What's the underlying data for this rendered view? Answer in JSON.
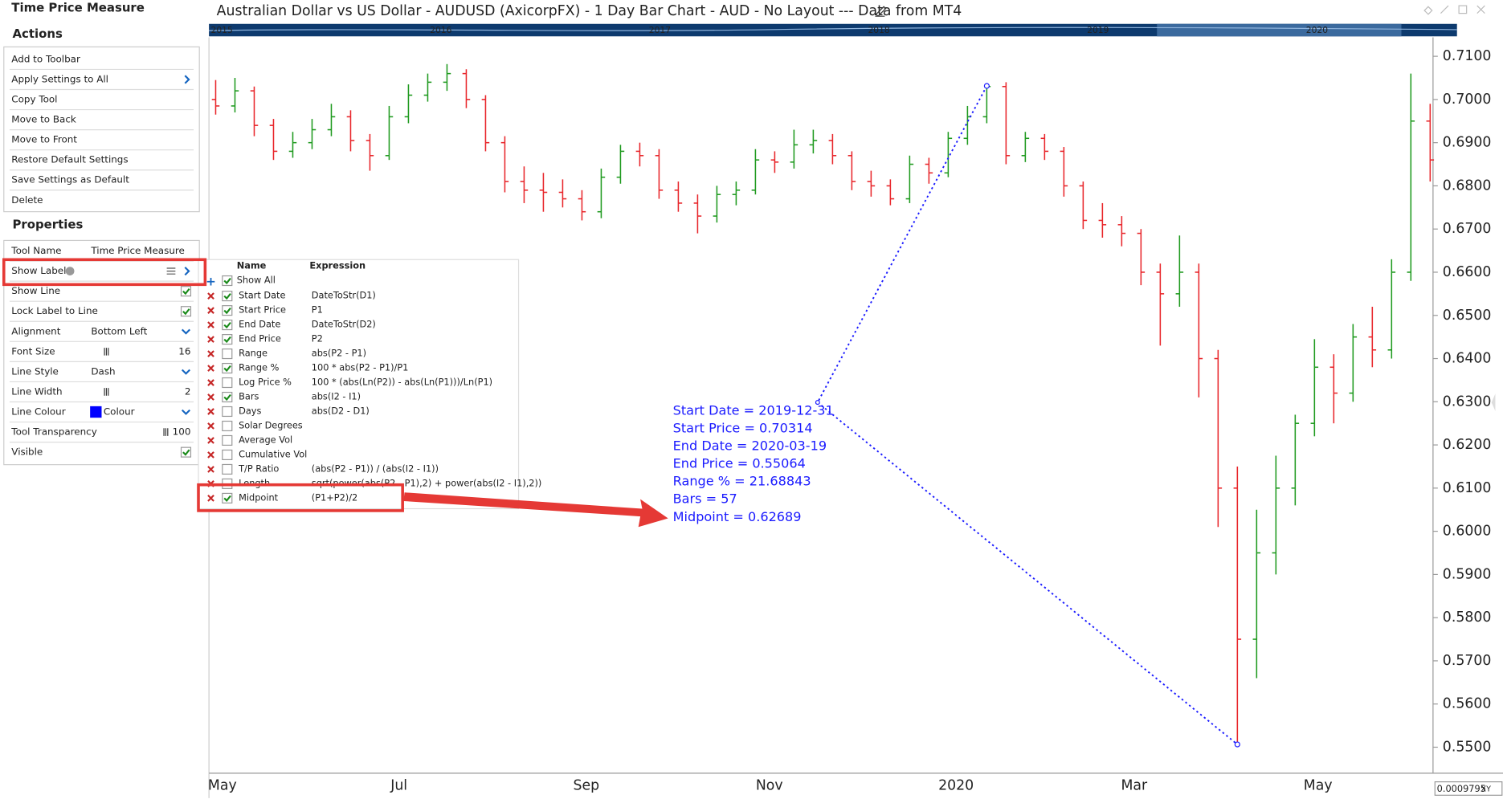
{
  "header": {
    "title": "Australian Dollar vs US Dollar - AUDUSD (AxicorpFX) - 1 Day Bar Chart - AUD - No Layout --- Data from MT4"
  },
  "navigator": {
    "years": [
      "2015",
      "2016",
      "2017",
      "2018",
      "2019",
      "2020"
    ]
  },
  "panel": {
    "title": "Time Price Measure",
    "actions_heading": "Actions",
    "actions": [
      "Add to Toolbar",
      "Apply Settings to All",
      "Copy Tool",
      "Move to Back",
      "Move to Front",
      "Restore Default Settings",
      "Save Settings as Default",
      "Delete"
    ],
    "properties_heading": "Properties",
    "properties": [
      {
        "label": "Tool Name",
        "value": "Time Price Measure"
      },
      {
        "label": "Show Labels"
      },
      {
        "label": "Show Line",
        "checked": true
      },
      {
        "label": "Lock Label to Line",
        "checked": true
      },
      {
        "label": "Alignment",
        "value": "Bottom Left",
        "dropdown": true
      },
      {
        "label": "Font Size",
        "value": 16
      },
      {
        "label": "Line Style",
        "value": "Dash",
        "dropdown": true
      },
      {
        "label": "Line Width",
        "value": 2
      },
      {
        "label": "Line Colour",
        "value": "Colour",
        "dropdown": true,
        "swatch": "#0000ff"
      },
      {
        "label": "Tool Transparency",
        "value": 100
      },
      {
        "label": "Visible",
        "checked": true
      }
    ]
  },
  "labels_table": {
    "headers": [
      "Name",
      "Expression"
    ],
    "show_all": "Show All",
    "rows": [
      {
        "name": "Start Date",
        "expression": "DateToStr(D1)",
        "checked": true
      },
      {
        "name": "Start Price",
        "expression": "P1",
        "checked": true
      },
      {
        "name": "End Date",
        "expression": "DateToStr(D2)",
        "checked": true
      },
      {
        "name": "End Price",
        "expression": "P2",
        "checked": true
      },
      {
        "name": "Range",
        "expression": "abs(P2 - P1)",
        "checked": false
      },
      {
        "name": "Range %",
        "expression": "100 * abs(P2 - P1)/P1",
        "checked": true
      },
      {
        "name": "Log Price %",
        "expression": "100 * (abs(Ln(P2)) - abs(Ln(P1)))/Ln(P1)",
        "checked": false
      },
      {
        "name": "Bars",
        "expression": "abs(I2 - I1)",
        "checked": true
      },
      {
        "name": "Days",
        "expression": "abs(D2 - D1)",
        "checked": false
      },
      {
        "name": "Solar Degrees",
        "checked": false
      },
      {
        "name": "Average Vol",
        "checked": false
      },
      {
        "name": "Cumulative Vol",
        "checked": false
      },
      {
        "name": "T/P Ratio",
        "expression": "(abs(P2 - P1)) / (abs(I2 - I1))",
        "checked": false
      },
      {
        "name": "Length",
        "expression": "sqrt(power(abs(P2 - P1),2) +  power(abs(I2 - I1),2))",
        "checked": false
      },
      {
        "name": "Midpoint",
        "expression": "(P1+P2)/2",
        "checked": true
      }
    ]
  },
  "chart_data": {
    "type": "ohlc",
    "up_color": "#1f9a1f",
    "down_color": "#e8262b",
    "x_labels": [
      "May",
      "Jul",
      "Sep",
      "Nov",
      "2020",
      "Mar",
      "May"
    ],
    "open": [
      0.7,
      0.6985,
      0.702,
      0.694,
      0.688,
      0.69,
      0.693,
      0.696,
      0.6905,
      0.687,
      0.696,
      0.701,
      0.704,
      0.706,
      0.7,
      0.69,
      0.681,
      0.679,
      0.6785,
      0.677,
      0.674,
      0.682,
      0.688,
      0.687,
      0.679,
      0.676,
      0.673,
      0.678,
      0.679,
      0.686,
      0.6855,
      0.6895,
      0.6905,
      0.687,
      0.681,
      0.68,
      0.677,
      0.685,
      0.683,
      0.691,
      0.696,
      0.703,
      0.687,
      0.691,
      0.688,
      0.68,
      0.672,
      0.671,
      0.669,
      0.66,
      0.655,
      0.66,
      0.64,
      0.61,
      0.575,
      0.595,
      0.61,
      0.625,
      0.638,
      0.632,
      0.645,
      0.642,
      0.66,
      0.695
    ],
    "high": [
      0.7045,
      0.705,
      0.703,
      0.6955,
      0.6925,
      0.6955,
      0.699,
      0.6975,
      0.692,
      0.6985,
      0.7035,
      0.706,
      0.7082,
      0.707,
      0.701,
      0.6915,
      0.6845,
      0.683,
      0.6815,
      0.679,
      0.684,
      0.6895,
      0.69,
      0.6885,
      0.681,
      0.678,
      0.68,
      0.681,
      0.6885,
      0.688,
      0.693,
      0.693,
      0.692,
      0.688,
      0.6835,
      0.6815,
      0.687,
      0.6865,
      0.6925,
      0.6985,
      0.7031,
      0.704,
      0.6925,
      0.692,
      0.689,
      0.681,
      0.676,
      0.673,
      0.67,
      0.662,
      0.6685,
      0.662,
      0.642,
      0.615,
      0.605,
      0.6175,
      0.627,
      0.6445,
      0.641,
      0.648,
      0.652,
      0.663,
      0.706,
      0.699
    ],
    "low": [
      0.6965,
      0.697,
      0.6915,
      0.686,
      0.6865,
      0.6885,
      0.6915,
      0.688,
      0.6835,
      0.686,
      0.6945,
      0.6995,
      0.702,
      0.698,
      0.688,
      0.6785,
      0.676,
      0.674,
      0.675,
      0.672,
      0.6725,
      0.6805,
      0.6845,
      0.677,
      0.674,
      0.669,
      0.6715,
      0.6755,
      0.678,
      0.683,
      0.684,
      0.6875,
      0.685,
      0.679,
      0.6775,
      0.6755,
      0.676,
      0.6805,
      0.682,
      0.6895,
      0.6945,
      0.685,
      0.6855,
      0.686,
      0.6775,
      0.67,
      0.668,
      0.666,
      0.657,
      0.643,
      0.652,
      0.631,
      0.601,
      0.5506,
      0.566,
      0.59,
      0.606,
      0.622,
      0.625,
      0.63,
      0.638,
      0.64,
      0.658,
      0.681
    ],
    "close": [
      0.6985,
      0.702,
      0.694,
      0.688,
      0.69,
      0.693,
      0.696,
      0.6905,
      0.687,
      0.696,
      0.701,
      0.704,
      0.706,
      0.7,
      0.69,
      0.681,
      0.679,
      0.6785,
      0.677,
      0.674,
      0.682,
      0.688,
      0.687,
      0.679,
      0.676,
      0.673,
      0.678,
      0.679,
      0.686,
      0.6855,
      0.6895,
      0.6905,
      0.687,
      0.681,
      0.68,
      0.677,
      0.685,
      0.683,
      0.691,
      0.696,
      0.703,
      0.687,
      0.691,
      0.688,
      0.68,
      0.672,
      0.671,
      0.669,
      0.66,
      0.655,
      0.66,
      0.64,
      0.61,
      0.575,
      0.595,
      0.61,
      0.625,
      0.638,
      0.632,
      0.645,
      0.642,
      0.66,
      0.695,
      0.686
    ],
    "ylim": [
      0.5442,
      0.7144
    ],
    "yticks": [
      {
        "value": 0.55,
        "label": "0.5500"
      },
      {
        "value": 0.56,
        "label": "0.5600"
      },
      {
        "value": 0.57,
        "label": "0.5700"
      },
      {
        "value": 0.58,
        "label": "0.5800"
      },
      {
        "value": 0.59,
        "label": "0.5900"
      },
      {
        "value": 0.6,
        "label": "0.6000"
      },
      {
        "value": 0.61,
        "label": "0.6100"
      },
      {
        "value": 0.62,
        "label": "0.6200"
      },
      {
        "value": 0.63,
        "label": "0.6300"
      },
      {
        "value": 0.64,
        "label": "0.6400"
      },
      {
        "value": 0.65,
        "label": "0.6500"
      },
      {
        "value": 0.66,
        "label": "0.6600"
      },
      {
        "value": 0.67,
        "label": "0.6700"
      },
      {
        "value": 0.68,
        "label": "0.6800"
      },
      {
        "value": 0.69,
        "label": "0.6900"
      },
      {
        "value": 0.7,
        "label": "0.7000"
      },
      {
        "value": 0.71,
        "label": "0.7100"
      }
    ],
    "measure": {
      "start": 0.70314,
      "end": 0.55064,
      "color": "#1a1aff",
      "labels": [
        "Start Date = 2019-12-31",
        "Start Price = 0.70314",
        "End Date = 2020-03-19",
        "End Price = 0.55064",
        "Range % = 21.68843",
        "Bars = 57",
        "Midpoint = 0.62689"
      ]
    },
    "cursor_readout": "0.0009795",
    "readout_mode": "XY"
  }
}
